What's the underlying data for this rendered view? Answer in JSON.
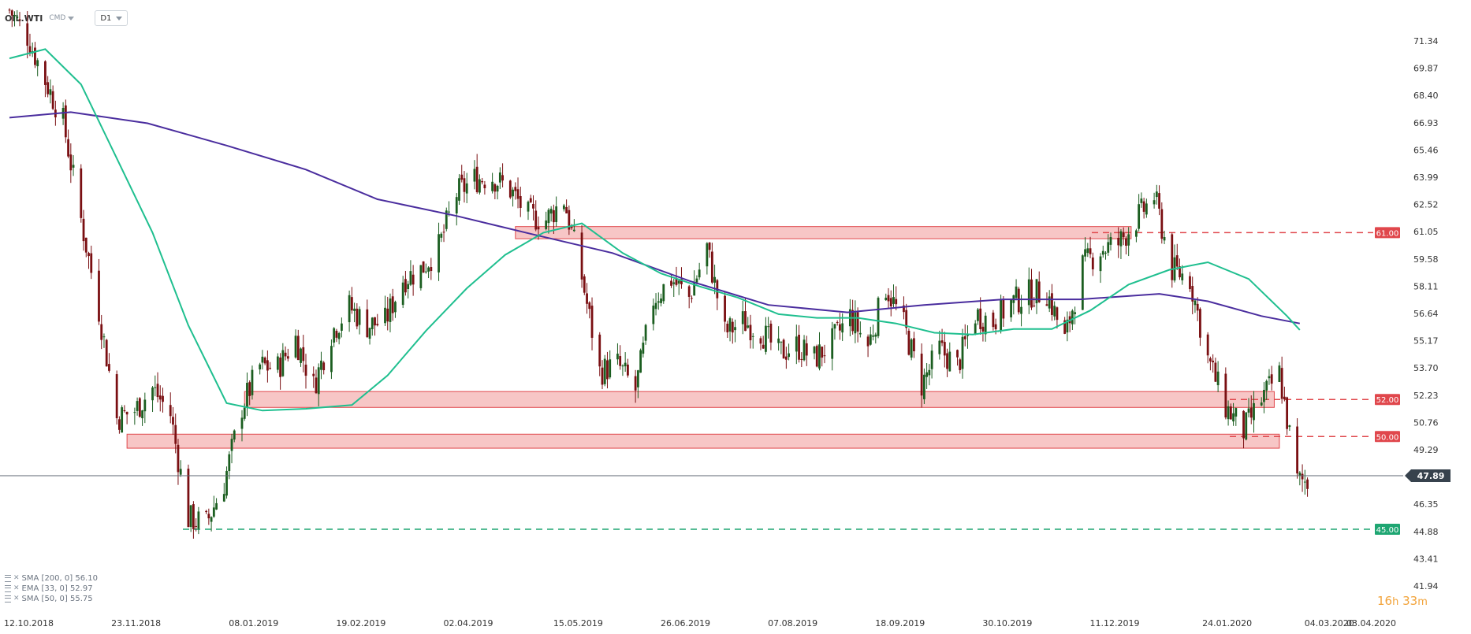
{
  "header": {
    "symbol": "OIL.WTI",
    "market": "CMD",
    "timeframe": "D1"
  },
  "legend": [
    {
      "label": "SMA [200, 0] 56.10"
    },
    {
      "label": "EMA [33, 0] 52.97"
    },
    {
      "label": "SMA [50, 0] 55.75"
    }
  ],
  "timer": {
    "hours": "16",
    "h": "h",
    "minutes": "33",
    "m": "m"
  },
  "colors": {
    "bull": "#1b5e20",
    "bear": "#7a0f12",
    "ema": "#1fbf8f",
    "sma200": "#4a2d9e",
    "sma50": "#1fbf8f",
    "zone_fill": "#f4b3b3",
    "zone_stroke": "#e0474c",
    "level_red": "#e0474c",
    "level_green": "#1ea672",
    "price_line": "#5c6670",
    "price_label_bg": "#37424d"
  },
  "chart_data": {
    "type": "candlestick",
    "y_ticks": [
      "71.34",
      "69.87",
      "68.40",
      "66.93",
      "65.46",
      "63.99",
      "62.52",
      "61.05",
      "59.58",
      "58.11",
      "56.64",
      "55.17",
      "53.70",
      "52.23",
      "50.76",
      "49.29",
      "46.35",
      "44.88",
      "43.41",
      "41.94"
    ],
    "x_ticks": [
      "12.10.2018",
      "23.11.2018",
      "08.01.2019",
      "19.02.2019",
      "02.04.2019",
      "15.05.2019",
      "26.06.2019",
      "07.08.2019",
      "18.09.2019",
      "30.10.2019",
      "11.12.2019",
      "24.01.2020",
      "04.03.2020",
      "03.04.2020"
    ],
    "ylim": [
      41.94,
      71.34
    ],
    "current_price": "47.89",
    "levels": [
      {
        "label": "61.00",
        "value": 61.0,
        "style": "dashed",
        "color": "red"
      },
      {
        "label": "52.00",
        "value": 52.0,
        "style": "dashed",
        "color": "red"
      },
      {
        "label": "50.00",
        "value": 50.0,
        "style": "dashed",
        "color": "red"
      },
      {
        "label": "45.00",
        "value": 45.0,
        "style": "dashed",
        "color": "green"
      }
    ],
    "zones": [
      {
        "from_date": "2019-04-24",
        "to_date": "2019-12-21",
        "low": 60.8,
        "high": 61.2
      },
      {
        "from_date": "2019-01-08",
        "to_date": "2020-02-15",
        "low": 51.7,
        "high": 52.3
      },
      {
        "from_date": "2018-11-23",
        "to_date": "2020-02-17",
        "low": 49.5,
        "high": 50.0
      }
    ],
    "close_path": [
      [
        "2018-10-08",
        73.0
      ],
      [
        "2018-10-15",
        71.6
      ],
      [
        "2018-10-22",
        69.2
      ],
      [
        "2018-10-29",
        67.0
      ],
      [
        "2018-11-05",
        61.7
      ],
      [
        "2018-11-12",
        56.8
      ],
      [
        "2018-11-19",
        51.0
      ],
      [
        "2018-11-26",
        51.4
      ],
      [
        "2018-12-03",
        52.6
      ],
      [
        "2018-12-10",
        51.2
      ],
      [
        "2018-12-17",
        45.6
      ],
      [
        "2018-12-24",
        45.3
      ],
      [
        "2018-12-31",
        47.5
      ],
      [
        "2019-01-07",
        51.6
      ],
      [
        "2019-01-14",
        53.8
      ],
      [
        "2019-01-21",
        53.7
      ],
      [
        "2019-01-28",
        55.3
      ],
      [
        "2019-02-04",
        52.7
      ],
      [
        "2019-02-11",
        55.6
      ],
      [
        "2019-02-18",
        57.0
      ],
      [
        "2019-02-25",
        56.0
      ],
      [
        "2019-03-04",
        56.2
      ],
      [
        "2019-03-11",
        58.5
      ],
      [
        "2019-03-18",
        59.0
      ],
      [
        "2019-03-25",
        60.2
      ],
      [
        "2019-04-01",
        63.1
      ],
      [
        "2019-04-08",
        63.9
      ],
      [
        "2019-04-15",
        64.0
      ],
      [
        "2019-04-22",
        63.3
      ],
      [
        "2019-04-29",
        61.9
      ],
      [
        "2019-05-06",
        61.7
      ],
      [
        "2019-05-13",
        62.8
      ],
      [
        "2019-05-20",
        58.6
      ],
      [
        "2019-05-27",
        53.5
      ],
      [
        "2019-06-03",
        53.9
      ],
      [
        "2019-06-10",
        52.5
      ],
      [
        "2019-06-17",
        57.4
      ],
      [
        "2019-06-24",
        58.5
      ],
      [
        "2019-07-01",
        57.5
      ],
      [
        "2019-07-08",
        60.2
      ],
      [
        "2019-07-15",
        55.6
      ],
      [
        "2019-07-22",
        56.2
      ],
      [
        "2019-07-29",
        55.7
      ],
      [
        "2019-08-05",
        54.5
      ],
      [
        "2019-08-12",
        54.9
      ],
      [
        "2019-08-19",
        54.2
      ],
      [
        "2019-08-26",
        55.1
      ],
      [
        "2019-09-02",
        56.5
      ],
      [
        "2019-09-09",
        54.9
      ],
      [
        "2019-09-16",
        58.1
      ],
      [
        "2019-09-23",
        56.0
      ],
      [
        "2019-09-30",
        52.8
      ],
      [
        "2019-10-07",
        54.7
      ],
      [
        "2019-10-14",
        53.8
      ],
      [
        "2019-10-21",
        56.6
      ],
      [
        "2019-10-28",
        56.2
      ],
      [
        "2019-11-04",
        57.2
      ],
      [
        "2019-11-11",
        57.7
      ],
      [
        "2019-11-18",
        57.8
      ],
      [
        "2019-11-25",
        55.2
      ],
      [
        "2019-12-02",
        59.2
      ],
      [
        "2019-12-09",
        60.1
      ],
      [
        "2019-12-16",
        60.4
      ],
      [
        "2019-12-23",
        61.7
      ],
      [
        "2019-12-30",
        63.0
      ],
      [
        "2020-01-06",
        59.0
      ],
      [
        "2020-01-13",
        58.5
      ],
      [
        "2020-01-20",
        54.2
      ],
      [
        "2020-01-27",
        51.6
      ],
      [
        "2020-02-03",
        50.3
      ],
      [
        "2020-02-10",
        52.0
      ],
      [
        "2020-02-17",
        53.4
      ],
      [
        "2020-02-24",
        47.6
      ]
    ],
    "ema_path": [
      [
        "2018-10-08",
        70.4
      ],
      [
        "2018-10-22",
        70.9
      ],
      [
        "2018-11-05",
        69.0
      ],
      [
        "2018-11-19",
        65.0
      ],
      [
        "2018-12-03",
        61.0
      ],
      [
        "2018-12-17",
        56.0
      ],
      [
        "2019-01-01",
        51.8
      ],
      [
        "2019-01-15",
        51.4
      ],
      [
        "2019-02-01",
        51.5
      ],
      [
        "2019-02-19",
        51.7
      ],
      [
        "2019-03-05",
        53.3
      ],
      [
        "2019-03-20",
        55.7
      ],
      [
        "2019-04-05",
        58.0
      ],
      [
        "2019-04-20",
        59.8
      ],
      [
        "2019-05-05",
        61.0
      ],
      [
        "2019-05-20",
        61.5
      ],
      [
        "2019-06-05",
        59.9
      ],
      [
        "2019-06-20",
        58.8
      ],
      [
        "2019-07-05",
        58.1
      ],
      [
        "2019-07-20",
        57.5
      ],
      [
        "2019-08-05",
        56.6
      ],
      [
        "2019-08-20",
        56.4
      ],
      [
        "2019-09-05",
        56.4
      ],
      [
        "2019-09-20",
        56.1
      ],
      [
        "2019-10-05",
        55.6
      ],
      [
        "2019-10-20",
        55.5
      ],
      [
        "2019-11-05",
        55.8
      ],
      [
        "2019-11-20",
        55.8
      ],
      [
        "2019-12-05",
        56.8
      ],
      [
        "2019-12-20",
        58.2
      ],
      [
        "2020-01-05",
        59.0
      ],
      [
        "2020-01-20",
        59.4
      ],
      [
        "2020-02-05",
        58.5
      ],
      [
        "2020-02-20",
        56.5
      ],
      [
        "2020-02-25",
        55.75
      ]
    ],
    "sma200_path": [
      [
        "2018-10-08",
        67.2
      ],
      [
        "2018-11-01",
        67.5
      ],
      [
        "2018-12-01",
        66.9
      ],
      [
        "2019-01-01",
        65.7
      ],
      [
        "2019-02-01",
        64.4
      ],
      [
        "2019-03-01",
        62.8
      ],
      [
        "2019-04-01",
        61.9
      ],
      [
        "2019-05-01",
        60.9
      ],
      [
        "2019-06-01",
        59.9
      ],
      [
        "2019-07-01",
        58.4
      ],
      [
        "2019-08-01",
        57.1
      ],
      [
        "2019-09-01",
        56.7
      ],
      [
        "2019-10-01",
        57.1
      ],
      [
        "2019-11-01",
        57.4
      ],
      [
        "2019-12-01",
        57.4
      ],
      [
        "2020-01-01",
        57.7
      ],
      [
        "2020-01-20",
        57.3
      ],
      [
        "2020-02-10",
        56.5
      ],
      [
        "2020-02-25",
        56.1
      ]
    ]
  }
}
